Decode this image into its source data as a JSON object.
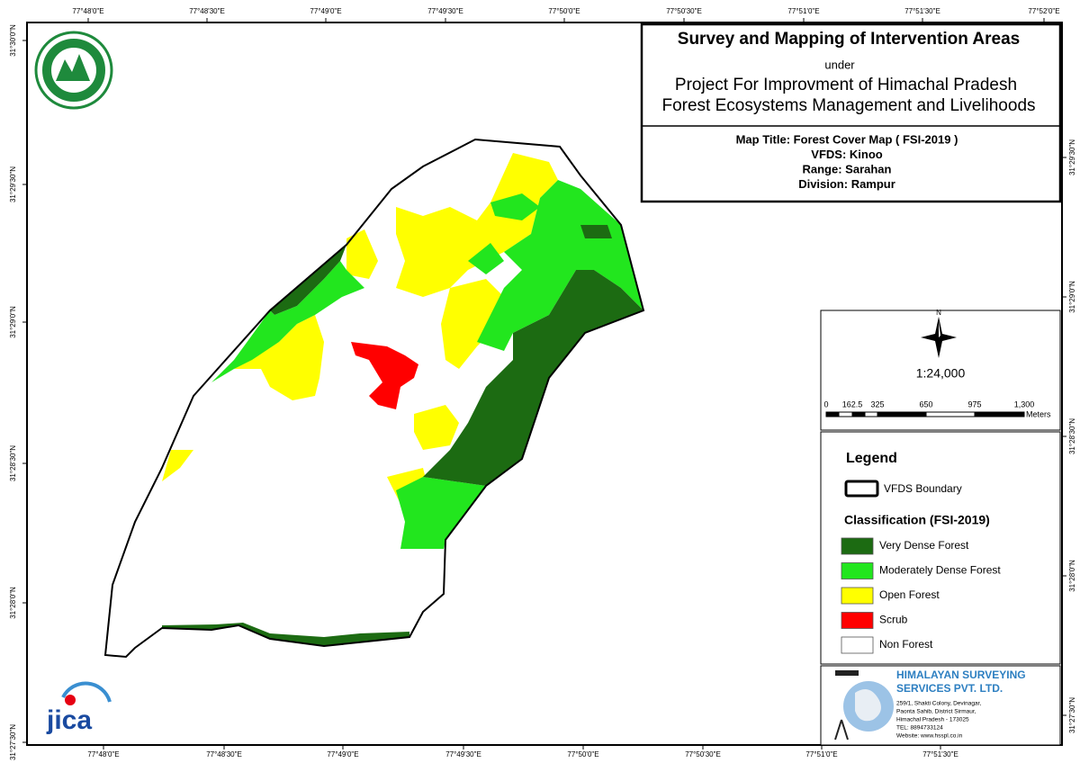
{
  "map": {
    "top_labels": [
      "77°48'0\"E",
      "77°48'30\"E",
      "77°49'0\"E",
      "77°49'30\"E",
      "77°50'0\"E",
      "77°50'30\"E",
      "77°51'0\"E",
      "77°51'30\"E",
      "77°52'0\"E"
    ],
    "bottom_labels": [
      "77°48'0\"E",
      "77°48'30\"E",
      "77°49'0\"E",
      "77°49'30\"E",
      "77°50'0\"E",
      "77°50'30\"E",
      "77°51'0\"E",
      "77°51'30\"E"
    ],
    "left_labels": [
      "31°30'0\"N",
      "31°29'30\"N",
      "31°29'0\"N",
      "31°28'30\"N",
      "31°28'0\"N",
      "31°27'30\"N"
    ],
    "right_labels": [
      "31°29'30\"N",
      "31°29'0\"N",
      "31°28'30\"N",
      "31°28'0\"N",
      "31°27'30\"N"
    ],
    "title_box": {
      "title": "Survey and Mapping of Intervention Areas",
      "under": "under",
      "project": [
        "Project For Improvment of Himachal Pradesh",
        "Forest Ecosystems Management and Livelihoods"
      ]
    },
    "map_info": [
      "Map Title: Forest Cover Map ( FSI-2019 )",
      "VFDS: Kinoo",
      "Range: Sarahan",
      "Division: Rampur"
    ],
    "north": "N",
    "scale": "1:24,000",
    "scale_bar_labels": [
      "0",
      "162.5",
      "325",
      "650",
      "975",
      "1,300"
    ],
    "scale_unit": "Meters",
    "legend": {
      "title": "Legend",
      "boundary": "VFDS Boundary",
      "classification_title": "Classification (FSI-2019)",
      "classes": [
        {
          "name": "Very Dense Forest",
          "color": "#1c6b12"
        },
        {
          "name": "Moderately Dense Forest",
          "color": "#22e61e"
        },
        {
          "name": "Open Forest",
          "color": "#ffff00"
        },
        {
          "name": "Scrub",
          "color": "#ff0000"
        },
        {
          "name": "Non Forest",
          "color": "#ffffff"
        }
      ]
    },
    "company": {
      "name_lines": [
        "HIMALAYAN SURVEYING",
        "SERVICES PVT. LTD."
      ],
      "address": [
        "259/1, Shakti Colony, Devinagar,",
        "Paonta Sahib, District Sirmaur,",
        "Himachal Pradesh - 173025",
        "TEL: 8894733124",
        "Website: www.hsspl.co.in"
      ]
    },
    "jica": "jica"
  }
}
